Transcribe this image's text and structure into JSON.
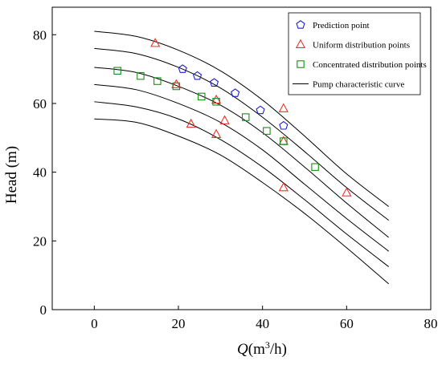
{
  "chart_data": {
    "type": "scatter",
    "xlabel": {
      "main": "Q",
      "unit_open": "(m",
      "sup": "3",
      "unit_close": "/h)"
    },
    "ylabel": "Head (m)",
    "xlim": [
      -10,
      80
    ],
    "ylim": [
      0,
      88
    ],
    "xticks": [
      0,
      20,
      40,
      60,
      80
    ],
    "yticks": [
      0,
      20,
      40,
      60,
      80
    ],
    "x_tick_labels": [
      "0",
      "20",
      "40",
      "60",
      "80"
    ],
    "y_tick_labels": [
      "0",
      "20",
      "40",
      "60",
      "80"
    ],
    "grid": false,
    "legend_position": "top-right",
    "curves": [
      {
        "x": [
          0,
          10,
          20,
          30,
          40,
          50,
          60,
          70
        ],
        "y": [
          81,
          79.5,
          75.5,
          69.5,
          61,
          50.5,
          39.5,
          30
        ]
      },
      {
        "x": [
          0,
          10,
          20,
          30,
          40,
          50,
          60,
          70
        ],
        "y": [
          76,
          74.5,
          70.5,
          64.5,
          56,
          46,
          35.5,
          26
        ]
      },
      {
        "x": [
          0,
          10,
          20,
          30,
          40,
          50,
          60,
          70
        ],
        "y": [
          70.5,
          69,
          65,
          59.5,
          51.5,
          41.5,
          31,
          21
        ]
      },
      {
        "x": [
          0,
          10,
          20,
          30,
          40,
          50,
          60,
          70
        ],
        "y": [
          65.5,
          64,
          60,
          54.5,
          46.5,
          36.5,
          26.5,
          17
        ]
      },
      {
        "x": [
          0,
          10,
          20,
          30,
          40,
          50,
          60,
          70
        ],
        "y": [
          60.5,
          59,
          55.5,
          49.5,
          41.5,
          32,
          22,
          12.5
        ]
      },
      {
        "x": [
          0,
          10,
          20,
          30,
          40,
          50,
          60,
          70
        ],
        "y": [
          55.5,
          54.5,
          50.5,
          45,
          37,
          28,
          18,
          7.5
        ]
      }
    ],
    "series": [
      {
        "name": "Prediction point",
        "marker": "pentagon",
        "color": "#1f1fcf",
        "points": [
          [
            21,
            70
          ],
          [
            24.5,
            68
          ],
          [
            28.5,
            66
          ],
          [
            33.5,
            63
          ],
          [
            39.5,
            58
          ],
          [
            45,
            53.5
          ]
        ]
      },
      {
        "name": "Uniform distribution points",
        "marker": "triangle",
        "color": "#e8332a",
        "points": [
          [
            14.5,
            77.5
          ],
          [
            19.5,
            65.5
          ],
          [
            29,
            61
          ],
          [
            45,
            58.5
          ],
          [
            23,
            54
          ],
          [
            31,
            55
          ],
          [
            29,
            51
          ],
          [
            45,
            49
          ],
          [
            45,
            35.5
          ],
          [
            60,
            34
          ]
        ]
      },
      {
        "name": "Concentrated distribution points",
        "marker": "square",
        "color": "#1a8c1a",
        "points": [
          [
            5.5,
            69.5
          ],
          [
            11,
            68
          ],
          [
            15,
            66.5
          ],
          [
            19.5,
            65
          ],
          [
            25.5,
            62
          ],
          [
            29,
            60.5
          ],
          [
            36,
            56
          ],
          [
            41,
            52
          ],
          [
            45,
            49
          ],
          [
            52.5,
            41.5
          ]
        ]
      }
    ],
    "legend": [
      {
        "label": "Prediction point",
        "marker": "pentagon",
        "color": "#1f1fcf"
      },
      {
        "label": "Uniform distribution points",
        "marker": "triangle",
        "color": "#e8332a"
      },
      {
        "label": "Concentrated distribution points",
        "marker": "square",
        "color": "#1a8c1a"
      },
      {
        "label": "Pump characteristic curve",
        "marker": "line",
        "color": "#000000"
      }
    ]
  }
}
